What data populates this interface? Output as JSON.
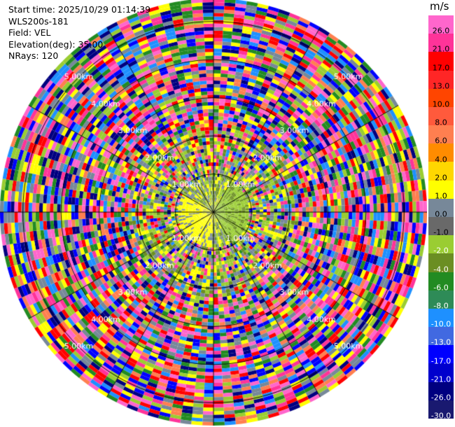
{
  "info": {
    "start_time": "Start time: 2025/10/29 01:14:39",
    "instrument": "WLS200s-181",
    "field": "Field: VEL",
    "elevation": "Elevation(deg): 35.00",
    "nrays": "NRays: 120"
  },
  "legend": {
    "unit": "m/s",
    "boundaries": [
      26.0,
      21.0,
      17.0,
      13.0,
      10.0,
      8.0,
      6.0,
      4.0,
      2.0,
      1.0,
      0.0,
      -1.0,
      -2.0,
      -4.0,
      -6.0,
      -8.0,
      -10.0,
      -13.0,
      -17.0,
      -21.0,
      -26.0,
      -30.0
    ],
    "labels": [
      "26.0",
      "21.0",
      "17.0",
      "13.0",
      "10.0",
      "8.0",
      "6.0",
      "4.0",
      "2.0",
      "1.0",
      "0.0",
      "-1.0",
      "-2.0",
      "-4.0",
      "-6.0",
      "-8.0",
      "-10.0",
      "-13.0",
      "-17.0",
      "-21.0",
      "-26.0",
      "-30.0"
    ],
    "colors": [
      "#ff66cc",
      "#ff3399",
      "#ff0000",
      "#ff2626",
      "#ff4500",
      "#ff5a3c",
      "#ff7f50",
      "#ff8c00",
      "#ffd700",
      "#ffff00",
      "#778899",
      "#696969",
      "#9acd32",
      "#6b8e23",
      "#228b22",
      "#2e8b57",
      "#1e90ff",
      "#4169e1",
      "#0000ff",
      "#0000cd",
      "#000080",
      "#191970"
    ]
  },
  "chart_data": {
    "type": "heatmap",
    "projection": "polar PPI",
    "field": "VEL",
    "elevation_deg": 35.0,
    "n_rays": 120,
    "max_range_km": 5.6,
    "range_rings_km": [
      1,
      2,
      3,
      4,
      5
    ],
    "ring_labels": [
      "1.00km",
      "2.00km",
      "3.00km",
      "4.00km",
      "5.00km"
    ],
    "ray_lines_deg": [
      0,
      30,
      60,
      90,
      120,
      150,
      180,
      210,
      240,
      270,
      300,
      330
    ],
    "inner_region_km": 1.0,
    "inner_region_note_colors": [
      "#ffff00",
      "#778899",
      "#9acd32",
      "#6b8e23"
    ],
    "outer_region_colors": [
      "#ff66cc",
      "#ff3399",
      "#ff0000",
      "#ff7f50",
      "#ffff00",
      "#228b22",
      "#1e90ff",
      "#0000ff",
      "#000080",
      "#778899",
      "#9acd32"
    ]
  }
}
